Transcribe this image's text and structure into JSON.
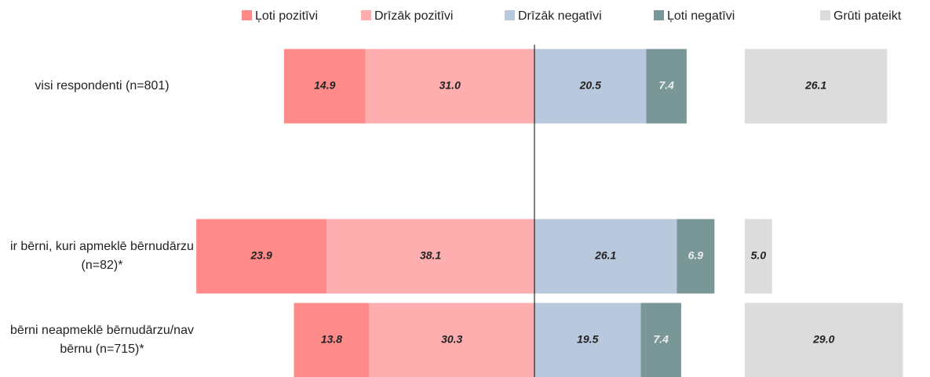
{
  "chart_data": {
    "type": "diverging_bar",
    "categories": [
      "visi respondenti (n=801)",
      "ir bērni, kuri apmeklē bērnudārzu (n=82)*",
      "bērni neapmeklē bērnudārzu/nav bērnu (n=715)*"
    ],
    "series": [
      {
        "name": "Ļoti pozitīvi",
        "color": "#ff8a8a",
        "values": [
          14.9,
          23.9,
          13.8
        ],
        "value_labels": [
          "14.9",
          "23.9",
          "13.8"
        ]
      },
      {
        "name": "Drīzāk pozitīvi",
        "color": "#ffaeb0",
        "values": [
          31,
          38.1,
          30.3
        ],
        "value_labels": [
          "31.0",
          "38.1",
          "30.3"
        ]
      },
      {
        "name": "Drīzāk negatīvi",
        "color": "#b8c9dd",
        "values": [
          20.5,
          26.1,
          19.5
        ],
        "value_labels": [
          "20.5",
          "26.1",
          "19.5"
        ]
      },
      {
        "name": "Ļoti negatīvi",
        "color": "#7a9797",
        "values": [
          7.4,
          6.9,
          7.4
        ],
        "value_labels": [
          "7.4",
          "6.9",
          "7.4"
        ]
      },
      {
        "name": "Grūti pateikt",
        "color": "#dcdcdc",
        "values": [
          26.1,
          5,
          29
        ],
        "value_labels": [
          "26.1",
          "5.0",
          "29.0"
        ]
      }
    ]
  }
}
